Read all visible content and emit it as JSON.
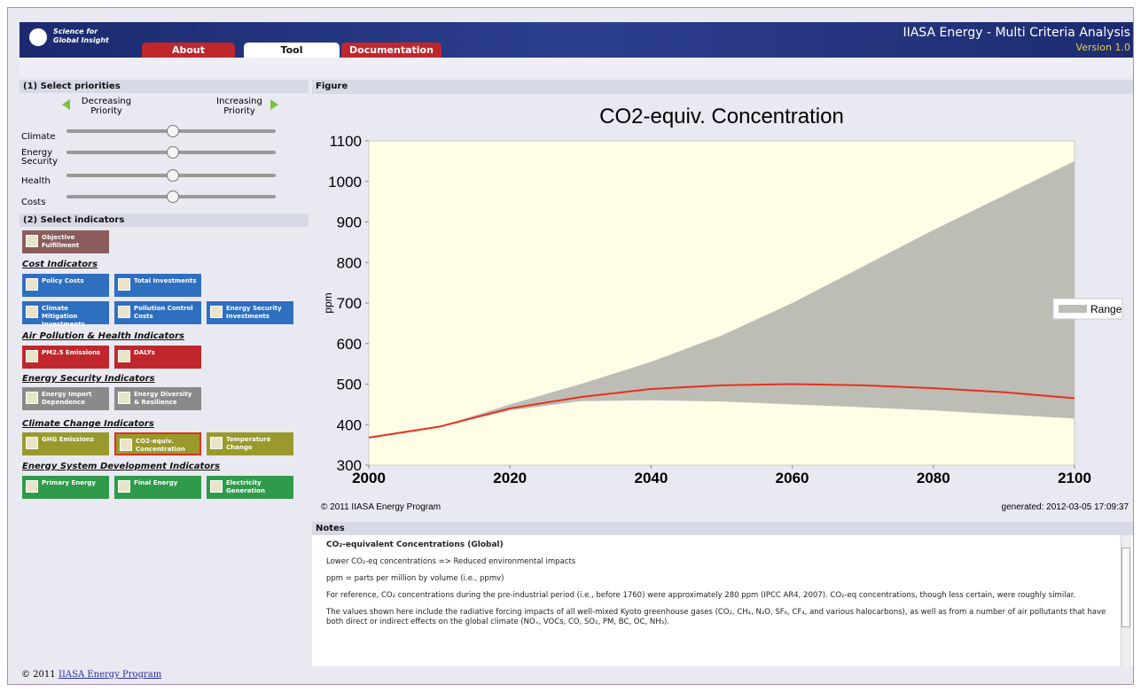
{
  "header": {
    "logo_text": [
      "Science for",
      "Global Insight"
    ],
    "tabs": [
      {
        "label": "About"
      },
      {
        "label": "Tool",
        "active": true
      },
      {
        "label": "Documentation"
      }
    ],
    "title": "IIASA Energy - Multi Criteria Analysis",
    "version": "Version 1.0"
  },
  "priorities": {
    "title": "(1) Select priorities",
    "decreasing": "Decreasing Priority",
    "increasing": "Increasing Priority",
    "sliders": [
      "Climate",
      "Energy Security",
      "Health",
      "Costs"
    ]
  },
  "indicators": {
    "title": "(2) Select indicators",
    "objective": {
      "label": "Objective Fulfillment",
      "color": "#8a5c5c"
    },
    "groups": [
      {
        "title": "Cost Indicators",
        "color": "#2f6fc0",
        "rows": [
          [
            "Policy Costs",
            "Total Investments"
          ],
          [
            "Climate Mitigation Investments",
            "Pollution Control Costs",
            "Energy Security Investments"
          ]
        ]
      },
      {
        "title": "Air Pollution & Health Indicators",
        "color": "#c0272d",
        "rows": [
          [
            "PM2.5 Emissions",
            "DALYs"
          ]
        ]
      },
      {
        "title": "Energy Security Indicators",
        "color": "#8a8a8a",
        "rows": [
          [
            "Energy Import Dependence",
            "Energy Diversity & Resilience"
          ]
        ]
      },
      {
        "title": "Climate Change Indicators",
        "color": "#9a9a2c",
        "rows": [
          [
            "GHG Emissions",
            {
              "label": "CO2-equiv. Concentration",
              "selected": true
            },
            "Temperature Change"
          ]
        ]
      },
      {
        "title": "Energy System Development Indicators",
        "color": "#2f9a4a",
        "rows": [
          [
            "Primary Energy",
            "Final Energy",
            "Electricity Generation"
          ]
        ]
      }
    ]
  },
  "figure": {
    "title": "Figure",
    "chart": {
      "type": "line",
      "title": "CO2-equiv. Concentration",
      "y_label": "ppm",
      "x": [
        2000,
        2010,
        2020,
        2030,
        2040,
        2050,
        2060,
        2070,
        2080,
        2090,
        2100
      ],
      "series": [
        {
          "name": "Range",
          "color": "#bdbdb6",
          "lower": [
            368,
            395,
            435,
            458,
            460,
            457,
            450,
            443,
            435,
            425,
            415
          ],
          "upper": [
            368,
            395,
            450,
            500,
            555,
            620,
            700,
            790,
            880,
            965,
            1050
          ]
        },
        {
          "color": "#e8301c",
          "values": [
            368,
            395,
            440,
            468,
            488,
            497,
            500,
            497,
            490,
            480,
            465
          ]
        }
      ],
      "xlim": [
        2000,
        2100
      ],
      "xticks": [
        2000,
        2020,
        2040,
        2060,
        2080,
        2100
      ],
      "ylim": [
        300,
        1100
      ],
      "yticks": [
        300,
        400,
        500,
        600,
        700,
        800,
        900,
        1000,
        1100
      ],
      "plot_background": "#fffde6",
      "legend": "right"
    },
    "copyright": "© 2011 IIASA Energy Program",
    "generated": "generated: 2012-03-05 17:09:37"
  },
  "notes": {
    "title": "Notes",
    "heading": "CO₂-equivalent Concentrations (Global)",
    "paragraphs": [
      "Lower CO₂-eq concentrations => Reduced environmental impacts",
      "ppm = parts per million by volume (i.e., ppmv)",
      "For reference, CO₂ concentrations during the pre-industrial period (i.e., before 1760) were approximately 280 ppm (IPCC AR4, 2007). CO₂-eq concentrations, though less certain, were roughly similar.",
      "The values shown here include the radiative forcing impacts of all well-mixed Kyoto greenhouse gases (CO₂, CH₄, N₂O, SF₆, CF₄, and various halocarbons), as well as from a number of air pollutants that have both direct or indirect effects on the global climate (NOₓ, VOCs, CO, SO₂, PM, BC, OC, NH₃)."
    ]
  },
  "footer": {
    "copyright": "© 2011",
    "link": "IIASA Energy Program"
  }
}
